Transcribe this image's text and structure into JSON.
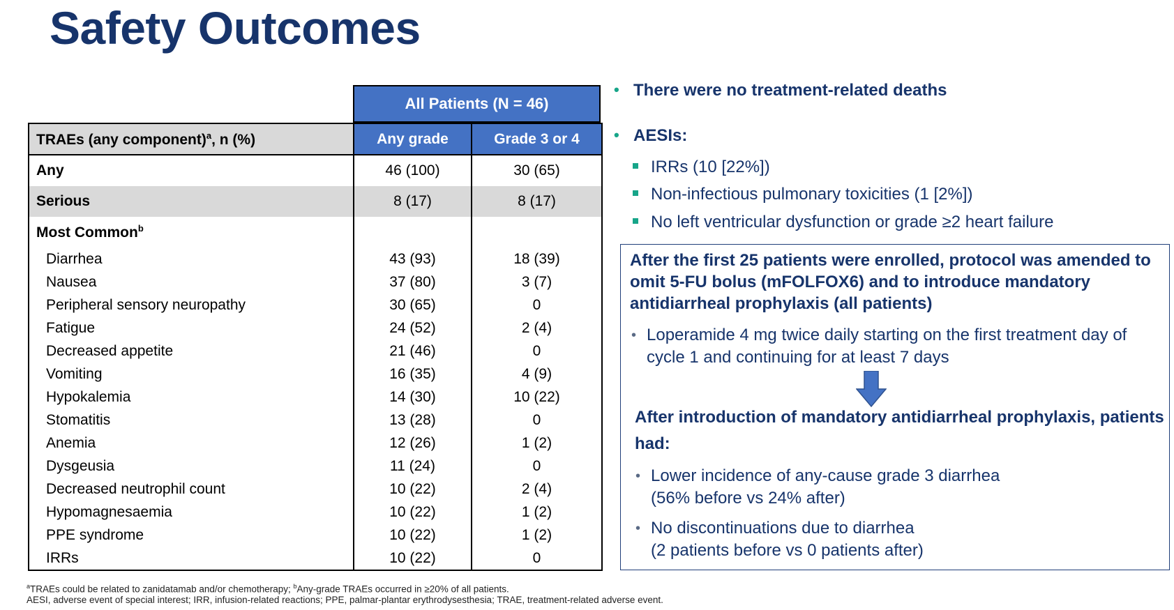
{
  "title": "Safety Outcomes",
  "table": {
    "group_header": "All Patients (N = 46)",
    "col_header_label": "TRAEs (any component)",
    "col_header_sup": "a",
    "col_header_suffix": ", n (%)",
    "col_any_grade": "Any grade",
    "col_grade34": "Grade 3 or 4",
    "any": {
      "label": "Any",
      "any_grade": "46 (100)",
      "grade34": "30 (65)"
    },
    "serious": {
      "label": "Serious",
      "any_grade": "8 (17)",
      "grade34": "8 (17)"
    },
    "most_common_label": "Most Common",
    "most_common_sup": "b",
    "rows": [
      {
        "label": "Diarrhea",
        "any_grade": "43 (93)",
        "grade34": "18 (39)"
      },
      {
        "label": "Nausea",
        "any_grade": "37 (80)",
        "grade34": "3 (7)"
      },
      {
        "label": "Peripheral sensory neuropathy",
        "any_grade": "30 (65)",
        "grade34": "0"
      },
      {
        "label": "Fatigue",
        "any_grade": "24 (52)",
        "grade34": "2 (4)"
      },
      {
        "label": "Decreased appetite",
        "any_grade": "21 (46)",
        "grade34": "0"
      },
      {
        "label": "Vomiting",
        "any_grade": "16 (35)",
        "grade34": "4 (9)"
      },
      {
        "label": "Hypokalemia",
        "any_grade": "14 (30)",
        "grade34": "10 (22)"
      },
      {
        "label": "Stomatitis",
        "any_grade": "13 (28)",
        "grade34": "0"
      },
      {
        "label": "Anemia",
        "any_grade": "12 (26)",
        "grade34": "1 (2)"
      },
      {
        "label": "Dysgeusia",
        "any_grade": "11 (24)",
        "grade34": "0"
      },
      {
        "label": "Decreased neutrophil count",
        "any_grade": "10 (22)",
        "grade34": "2 (4)"
      },
      {
        "label": "Hypomagnesaemia",
        "any_grade": "10 (22)",
        "grade34": "1 (2)"
      },
      {
        "label": "PPE syndrome",
        "any_grade": "10 (22)",
        "grade34": "1 (2)"
      },
      {
        "label": "IRRs",
        "any_grade": "10 (22)",
        "grade34": "0"
      }
    ]
  },
  "right": {
    "bullet1": "There were no treatment-related deaths",
    "bullet2": "AESIs:",
    "aesi_items": [
      "IRRs (10 [22%])",
      "Non-infectious pulmonary toxicities (1 [2%])",
      "No left ventricular dysfunction or grade ≥2 heart failure"
    ],
    "box": {
      "heading": "After the first 25 patients were enrolled, protocol was amended to omit 5-FU bolus (mFOLFOX6) and to introduce mandatory antidiarrheal prophylaxis (all patients)",
      "loperamide": "Loperamide 4 mg twice daily starting on the first treatment day of cycle 1 and continuing for at least 7 days",
      "after_heading": "After introduction of mandatory antidiarrheal prophylaxis, patients had:",
      "after_item1_line1": "Lower incidence of any-cause grade 3 diarrhea",
      "after_item1_line2": "(56% before vs 24% after)",
      "after_item2_line1": "No discontinuations due to diarrhea",
      "after_item2_line2": "(2 patients before vs 0 patients after)"
    }
  },
  "footnotes": {
    "line1_sup_a": "a",
    "line1_a": "TRAEs could be related to zanidatamab and/or chemotherapy; ",
    "line1_sup_b": "b",
    "line1_b": "Any-grade TRAEs occurred in ≥20% of all patients.",
    "line2": "AESI, adverse event of special interest; IRR, infusion-related reactions; PPE, palmar-plantar erythrodysesthesia; TRAE, treatment-related adverse event."
  },
  "colors": {
    "title": "#17346b",
    "header_blue": "#4472c4",
    "header_gray": "#d9d9d9",
    "bullet_teal": "#17a589"
  }
}
